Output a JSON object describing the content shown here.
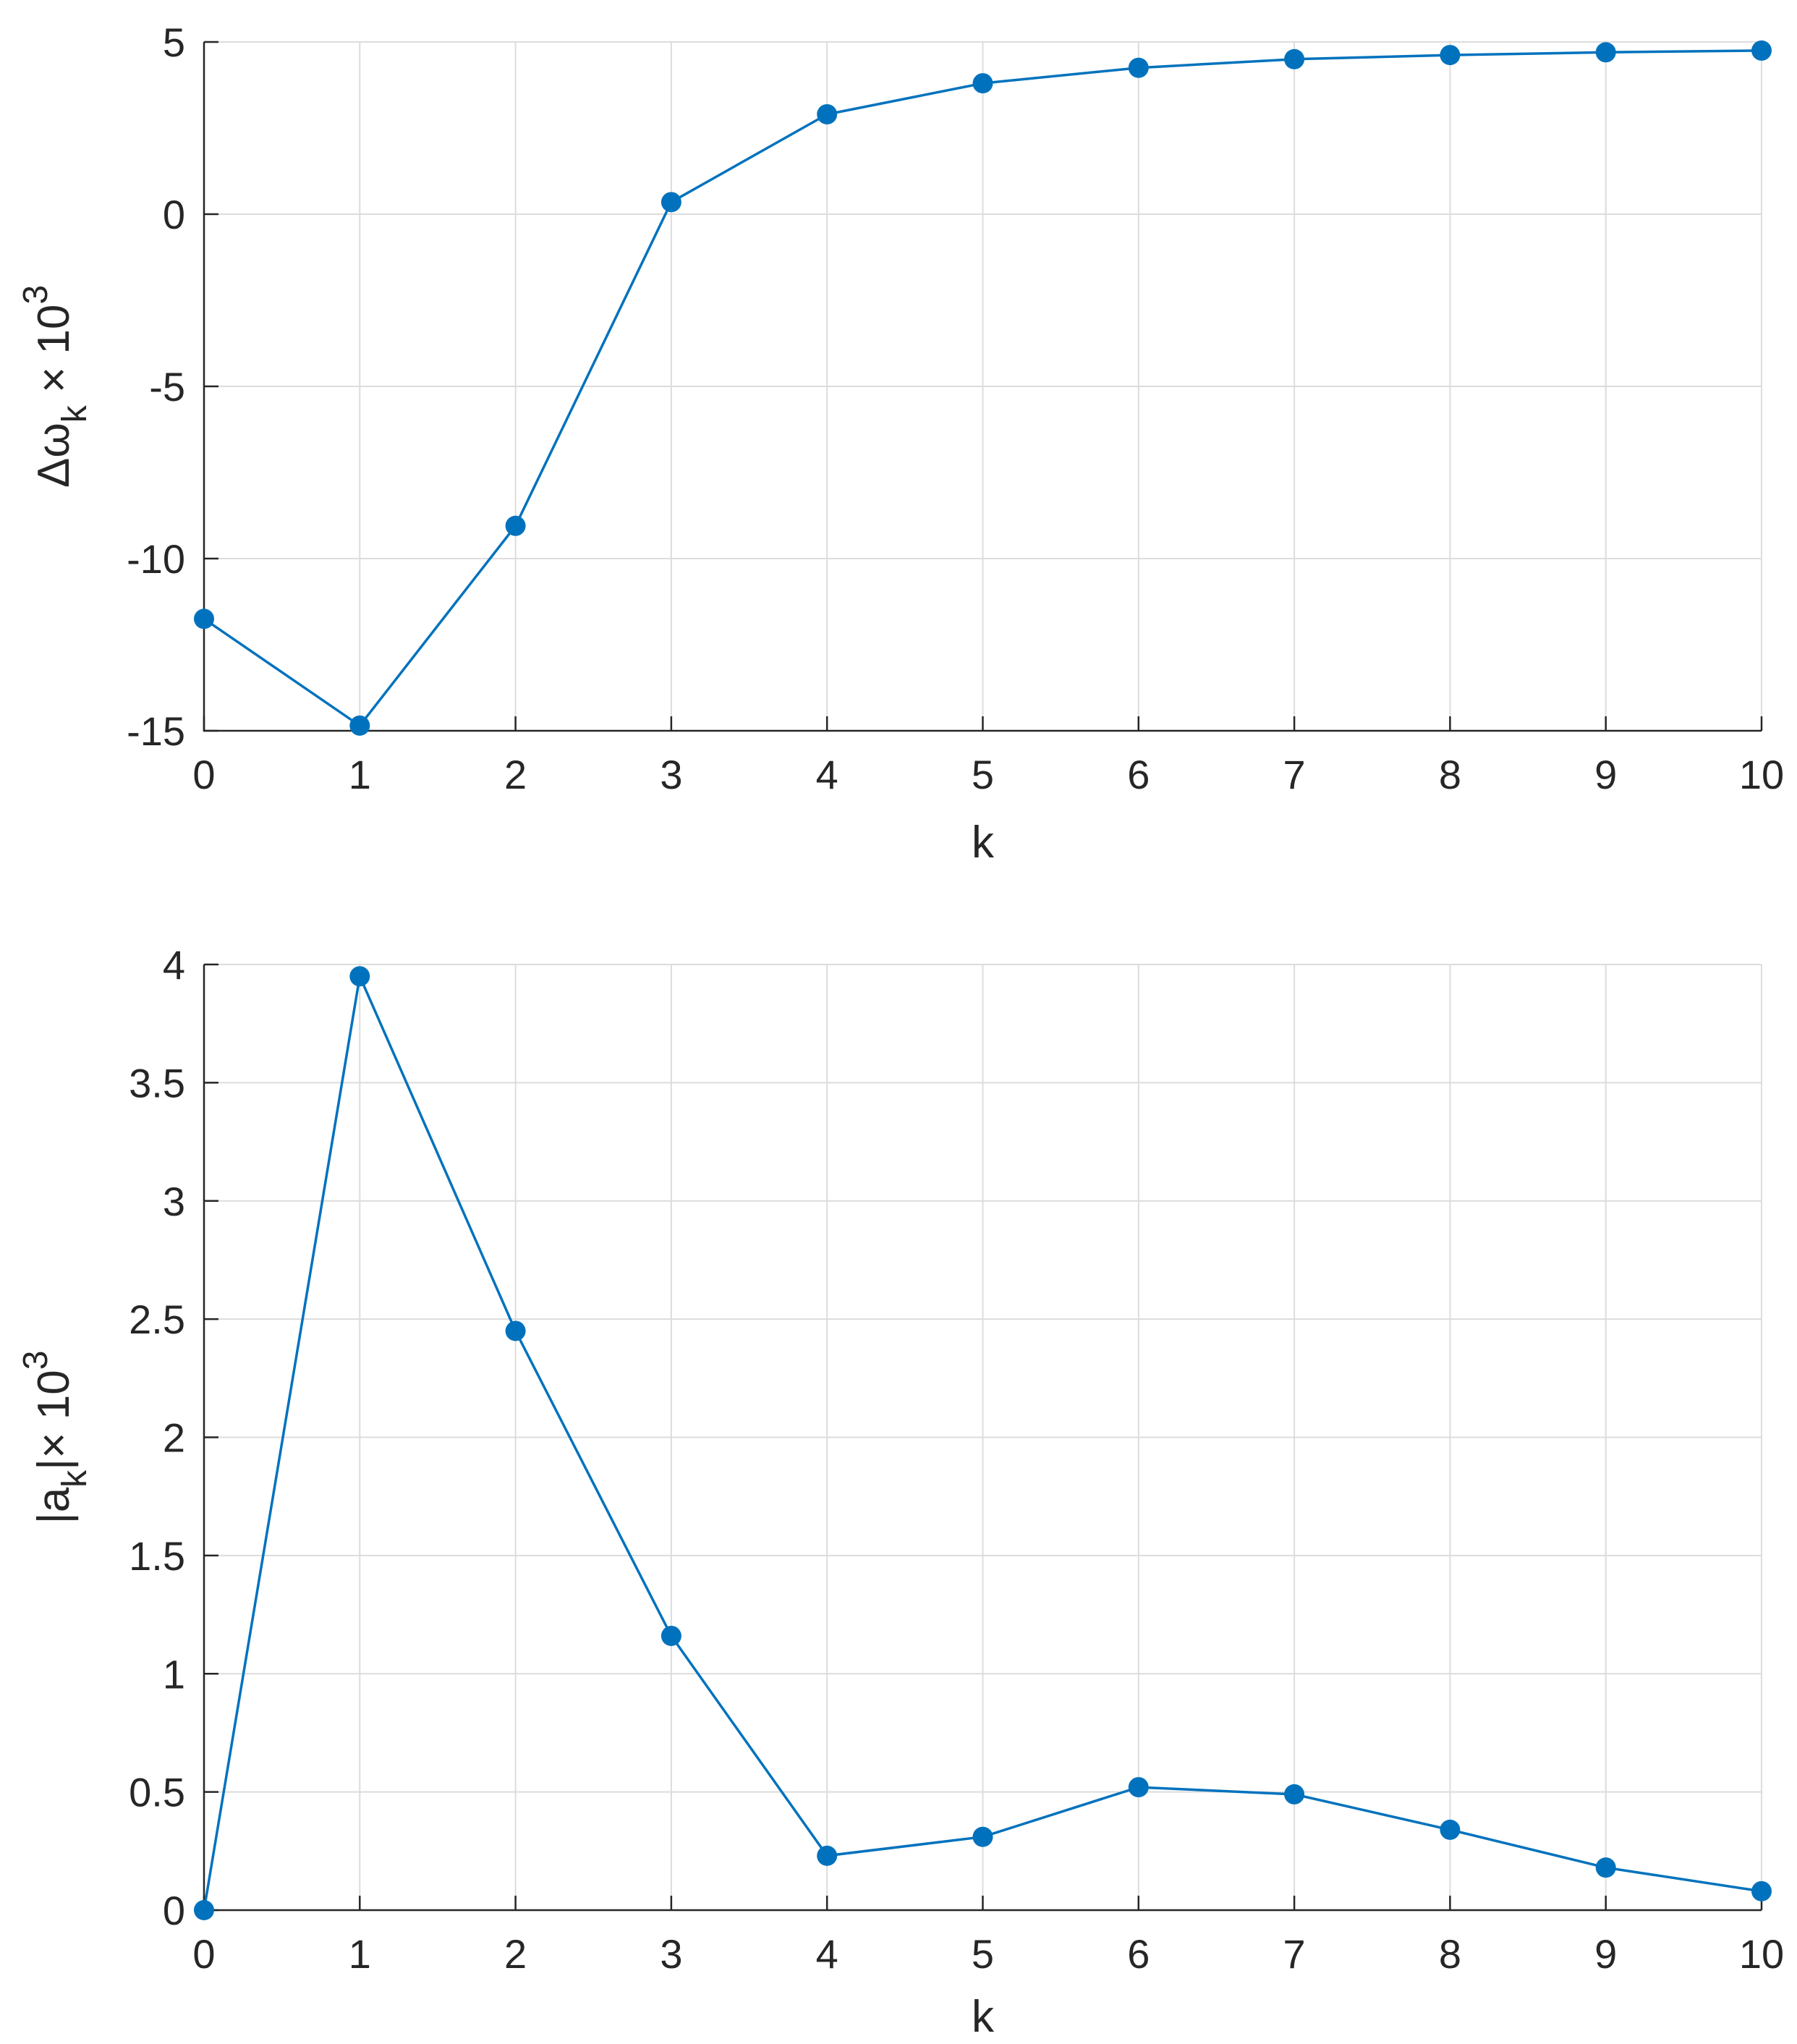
{
  "chart_data": [
    {
      "type": "line",
      "title": "",
      "xlabel": "k",
      "ylabel_main": "Δω",
      "ylabel_sub": "k",
      "ylabel_rest": " × 10",
      "ylabel_sup": "3",
      "xlim": [
        0,
        10
      ],
      "ylim": [
        -15,
        5
      ],
      "xticks": [
        "0",
        "1",
        "2",
        "3",
        "4",
        "5",
        "6",
        "7",
        "8",
        "9",
        "10"
      ],
      "yticks": [
        "5",
        "0",
        "-5",
        "-10",
        "-15"
      ],
      "ytick_values": [
        5,
        0,
        -5,
        -10,
        -15
      ],
      "grid": true,
      "color": "#0072BD",
      "x": [
        0,
        1,
        2,
        3,
        4,
        5,
        6,
        7,
        8,
        9,
        10
      ],
      "values": [
        -11.75,
        -14.85,
        -9.05,
        0.35,
        2.9,
        3.8,
        4.25,
        4.5,
        4.62,
        4.7,
        4.75
      ]
    },
    {
      "type": "line",
      "title": "",
      "xlabel": "k",
      "ylabel_main": "|a",
      "ylabel_sub": "k",
      "ylabel_rest": "|× 10",
      "ylabel_sup": "3",
      "xlim": [
        0,
        10
      ],
      "ylim": [
        0,
        4
      ],
      "xticks": [
        "0",
        "1",
        "2",
        "3",
        "4",
        "5",
        "6",
        "7",
        "8",
        "9",
        "10"
      ],
      "yticks": [
        "4",
        "3.5",
        "3",
        "2.5",
        "2",
        "1.5",
        "1",
        "0.5",
        "0"
      ],
      "ytick_values": [
        4,
        3.5,
        3,
        2.5,
        2,
        1.5,
        1,
        0.5,
        0
      ],
      "grid": true,
      "color": "#0072BD",
      "x": [
        0,
        1,
        2,
        3,
        4,
        5,
        6,
        7,
        8,
        9,
        10
      ],
      "values": [
        0.0,
        3.95,
        2.45,
        1.16,
        0.23,
        0.31,
        0.52,
        0.49,
        0.34,
        0.18,
        0.08
      ]
    }
  ]
}
